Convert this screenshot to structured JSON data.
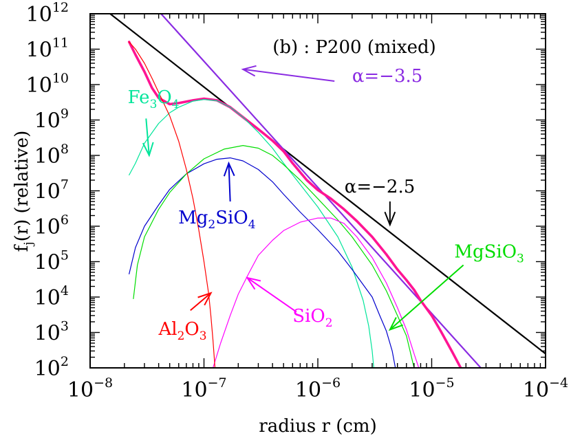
{
  "chart_data": {
    "type": "line",
    "title": "(b) : P200 (mixed)",
    "xlabel": "radius r (cm)",
    "ylabel": {
      "base": "f",
      "sub": "j",
      "rest": "(r) (relative)"
    },
    "x_scale": "log",
    "y_scale": "log",
    "xlim": [
      1e-08,
      0.0001
    ],
    "ylim": [
      100,
      1000000000000.0
    ],
    "x_ticks": [
      {
        "base": "10",
        "exp": "−8",
        "value": 1e-08
      },
      {
        "base": "10",
        "exp": "−7",
        "value": 1e-07
      },
      {
        "base": "10",
        "exp": "−6",
        "value": 1e-06
      },
      {
        "base": "10",
        "exp": "−5",
        "value": 1e-05
      },
      {
        "base": "10",
        "exp": "−4",
        "value": 0.0001
      }
    ],
    "y_ticks": [
      {
        "base": "10",
        "exp": "2",
        "value": 100.0
      },
      {
        "base": "10",
        "exp": "3",
        "value": 1000.0
      },
      {
        "base": "10",
        "exp": "4",
        "value": 10000.0
      },
      {
        "base": "10",
        "exp": "5",
        "value": 100000.0
      },
      {
        "base": "10",
        "exp": "6",
        "value": 1000000.0
      },
      {
        "base": "10",
        "exp": "7",
        "value": 10000000.0
      },
      {
        "base": "10",
        "exp": "8",
        "value": 100000000.0
      },
      {
        "base": "10",
        "exp": "9",
        "value": 1000000000.0
      },
      {
        "base": "10",
        "exp": "10",
        "value": 10000000000.0
      },
      {
        "base": "10",
        "exp": "11",
        "value": 100000000000.0
      },
      {
        "base": "10",
        "exp": "12",
        "value": 1000000000000.0
      }
    ],
    "grid": false,
    "series": [
      {
        "key": "alpha25",
        "color": "#000000",
        "width": 2.2,
        "points": [
          [
            1.5e-08,
            1000000000000.0
          ],
          [
            0.0001,
            250.0
          ]
        ]
      },
      {
        "key": "alpha35",
        "color": "#8a2be2",
        "width": 2.2,
        "points": [
          [
            4.2e-08,
            1000000000000.0
          ],
          [
            2.7e-05,
            100.0
          ]
        ]
      },
      {
        "key": "total",
        "color": "#ff1493",
        "width": 3.6,
        "points": [
          [
            2.2e-08,
            160000000000.0
          ],
          [
            2.5e-08,
            70000000000.0
          ],
          [
            3e-08,
            23000000000.0
          ],
          [
            3.5e-08,
            8000000000.0
          ],
          [
            4e-08,
            4200000000.0
          ],
          [
            5e-08,
            2800000000.0
          ],
          [
            6e-08,
            3000000000.0
          ],
          [
            8e-08,
            3600000000.0
          ],
          [
            1e-07,
            4000000000.0
          ],
          [
            1.3e-07,
            3600000000.0
          ],
          [
            1.7e-07,
            2300000000.0
          ],
          [
            2.2e-07,
            1200000000.0
          ],
          [
            3e-07,
            550000000.0
          ],
          [
            4e-07,
            260000000.0
          ],
          [
            5e-07,
            130000000.0
          ],
          [
            6e-07,
            60000000.0
          ],
          [
            8e-07,
            20000000.0
          ],
          [
            1e-06,
            10500000.0
          ],
          [
            1.3e-06,
            6000000.0
          ],
          [
            1.7e-06,
            3000000.0
          ],
          [
            2.2e-06,
            1400000.0
          ],
          [
            3e-06,
            500000.0
          ],
          [
            4e-06,
            160000.0
          ],
          [
            5e-06,
            60000.0
          ],
          [
            6e-06,
            30000.0
          ],
          [
            7e-06,
            16000.0
          ],
          [
            8e-06,
            8000.0
          ],
          [
            1e-05,
            3000.0
          ],
          [
            1.2e-05,
            1100.0
          ],
          [
            1.5e-05,
            300.0
          ],
          [
            1.8e-05,
            100.0
          ]
        ]
      },
      {
        "key": "fe3o4",
        "color": "#00e59a",
        "width": 1.2,
        "points": [
          [
            2.2e-08,
            28000000.0
          ],
          [
            2.5e-08,
            60000000.0
          ],
          [
            3e-08,
            220000000.0
          ],
          [
            4e-08,
            800000000.0
          ],
          [
            5e-08,
            1600000000.0
          ],
          [
            6e-08,
            2300000000.0
          ],
          [
            8e-08,
            3400000000.0
          ],
          [
            1e-07,
            3800000000.0
          ],
          [
            1.3e-07,
            3500000000.0
          ],
          [
            1.7e-07,
            2300000000.0
          ],
          [
            2.2e-07,
            1200000000.0
          ],
          [
            3e-07,
            450000000.0
          ],
          [
            4e-07,
            160000000.0
          ],
          [
            5e-07,
            60000000.0
          ],
          [
            7e-07,
            15000000.0
          ],
          [
            1e-06,
            3500000.0
          ],
          [
            1.5e-06,
            500000.0
          ],
          [
            2e-06,
            70000.0
          ],
          [
            2.5e-06,
            8000.0
          ],
          [
            2.8e-06,
            1500.0
          ],
          [
            3e-06,
            300.0
          ],
          [
            3.1e-06,
            100.0
          ]
        ]
      },
      {
        "key": "mg2sio4",
        "color": "#0000cd",
        "width": 1.2,
        "points": [
          [
            2.2e-08,
            45000.0
          ],
          [
            2.5e-08,
            250000.0
          ],
          [
            3e-08,
            1000000.0
          ],
          [
            4e-08,
            4000000.0
          ],
          [
            5e-08,
            11000000.0
          ],
          [
            7e-08,
            30000000.0
          ],
          [
            1e-07,
            58000000.0
          ],
          [
            1.3e-07,
            78000000.0
          ],
          [
            1.7e-07,
            85000000.0
          ],
          [
            2.2e-07,
            70000000.0
          ],
          [
            3e-07,
            40000000.0
          ],
          [
            4e-07,
            18000000.0
          ],
          [
            5e-07,
            8000000.0
          ],
          [
            7e-07,
            2500000.0
          ],
          [
            1e-06,
            800000.0
          ],
          [
            1.5e-06,
            200000.0
          ],
          [
            2e-06,
            60000.0
          ],
          [
            3e-06,
            10000.0
          ],
          [
            3.5e-06,
            3000.0
          ],
          [
            4e-06,
            1100.0
          ],
          [
            4.5e-06,
            300.0
          ],
          [
            4.8e-06,
            100.0
          ]
        ]
      },
      {
        "key": "mgsio3",
        "color": "#00dd00",
        "width": 1.2,
        "points": [
          [
            2.4e-08,
            9000.0
          ],
          [
            2.6e-08,
            80000.0
          ],
          [
            3e-08,
            500000.0
          ],
          [
            4e-08,
            3000000.0
          ],
          [
            5e-08,
            9000000.0
          ],
          [
            7e-08,
            30000000.0
          ],
          [
            1e-07,
            80000000.0
          ],
          [
            1.5e-07,
            150000000.0
          ],
          [
            2.2e-07,
            190000000.0
          ],
          [
            3e-07,
            160000000.0
          ],
          [
            4e-07,
            100000000.0
          ],
          [
            5e-07,
            55000000.0
          ],
          [
            7e-07,
            20000000.0
          ],
          [
            1e-06,
            6000000.0
          ],
          [
            1.5e-06,
            1500000.0
          ],
          [
            2e-06,
            500000.0
          ],
          [
            3e-06,
            80000.0
          ],
          [
            4e-06,
            15000.0
          ],
          [
            5e-06,
            3000.0
          ],
          [
            6e-06,
            800.0
          ],
          [
            7e-06,
            100.0
          ]
        ]
      },
      {
        "key": "sio2",
        "color": "#ff00ff",
        "width": 1.2,
        "points": [
          [
            1.2e-07,
            100.0
          ],
          [
            1.4e-07,
            500.0
          ],
          [
            1.7e-07,
            3000.0
          ],
          [
            2e-07,
            12000.0
          ],
          [
            2.5e-07,
            50000.0
          ],
          [
            3e-07,
            150000.0
          ],
          [
            4e-07,
            400000.0
          ],
          [
            5e-07,
            750000.0
          ],
          [
            7e-07,
            1300000.0
          ],
          [
            1e-06,
            1700000.0
          ],
          [
            1.3e-06,
            1700000.0
          ],
          [
            1.7e-06,
            1200000.0
          ],
          [
            2.2e-06,
            500000.0
          ],
          [
            3e-06,
            130000.0
          ],
          [
            4e-06,
            25000.0
          ],
          [
            5e-06,
            5000.0
          ],
          [
            6e-06,
            1200.0
          ],
          [
            7e-06,
            250.0
          ],
          [
            7.7e-06,
            100.0
          ]
        ]
      },
      {
        "key": "al2o3",
        "color": "#ff0000",
        "width": 1.2,
        "points": [
          [
            2.2e-08,
            160000000000.0
          ],
          [
            2.5e-08,
            100000000000.0
          ],
          [
            3e-08,
            40000000000.0
          ],
          [
            3.5e-08,
            15000000000.0
          ],
          [
            4e-08,
            6000000000.0
          ],
          [
            5e-08,
            1300000000.0
          ],
          [
            6e-08,
            250000000.0
          ],
          [
            7e-08,
            40000000.0
          ],
          [
            8e-08,
            6000000.0
          ],
          [
            9e-08,
            800000.0
          ],
          [
            1e-07,
            100000.0
          ],
          [
            1.1e-07,
            12000.0
          ],
          [
            1.15e-07,
            3000.0
          ],
          [
            1.2e-07,
            600.0
          ],
          [
            1.25e-07,
            100.0
          ]
        ]
      }
    ],
    "annotations": [
      {
        "key": "alpha35",
        "text": "α=−3.5",
        "color": "#8a2be2",
        "label_at": [
          2e-06,
          12000000000.0
        ],
        "anchor": "start",
        "arrow_from": [
          1.4e-06,
          12500000000.0
        ],
        "arrow_to": [
          2.2e-07,
          27000000000.0
        ]
      },
      {
        "key": "alpha25",
        "text": "α=−2.5",
        "color": "#000000",
        "label_at": [
          3.5e-06,
          9000000.0
        ],
        "anchor": "middle",
        "arrow_from": [
          4.3e-06,
          5000000.0
        ],
        "arrow_to": [
          4.3e-06,
          1100000.0
        ]
      },
      {
        "key": "fe3o4",
        "color": "#00e59a",
        "parts": [
          [
            "Fe",
            false
          ],
          [
            "3",
            true
          ],
          [
            "O",
            false
          ],
          [
            "4",
            true
          ]
        ],
        "label_at": [
          3.6e-08,
          3000000000.0
        ],
        "anchor": "middle",
        "arrow_from": [
          3.1e-08,
          1100000000.0
        ],
        "arrow_to": [
          3.3e-08,
          100000000.0
        ]
      },
      {
        "key": "mg2sio4",
        "color": "#0000cd",
        "parts": [
          [
            "Mg",
            false
          ],
          [
            "2",
            true
          ],
          [
            "SiO",
            false
          ],
          [
            "4",
            true
          ]
        ],
        "label_at": [
          1.3e-07,
          1200000.0
        ],
        "anchor": "middle",
        "arrow_from": [
          1.7e-07,
          5000000.0
        ],
        "arrow_to": [
          1.65e-07,
          60000000.0
        ]
      },
      {
        "key": "mgsio3",
        "color": "#00dd00",
        "parts": [
          [
            "MgSiO",
            false
          ],
          [
            "3",
            true
          ]
        ],
        "label_at": [
          3.2e-05,
          130000.0
        ],
        "anchor": "middle",
        "arrow_from": [
          1.9e-05,
          80000.0
        ],
        "arrow_to": [
          4.3e-06,
          1200.0
        ]
      },
      {
        "key": "sio2",
        "color": "#ff00ff",
        "parts": [
          [
            "SiO",
            false
          ],
          [
            "2",
            true
          ]
        ],
        "label_at": [
          9e-07,
          2000.0
        ],
        "anchor": "middle",
        "arrow_from": [
          6.5e-07,
          3800.0
        ],
        "arrow_to": [
          2.4e-07,
          35000.0
        ]
      },
      {
        "key": "al2o3",
        "color": "#ff0000",
        "parts": [
          [
            "Al",
            false
          ],
          [
            "2",
            true
          ],
          [
            "O",
            false
          ],
          [
            "3",
            true
          ]
        ],
        "label_at": [
          6.5e-08,
          850.0
        ],
        "anchor": "middle",
        "arrow_from": [
          7.6e-08,
          4200.0
        ],
        "arrow_to": [
          1.15e-07,
          13000.0
        ]
      }
    ]
  }
}
